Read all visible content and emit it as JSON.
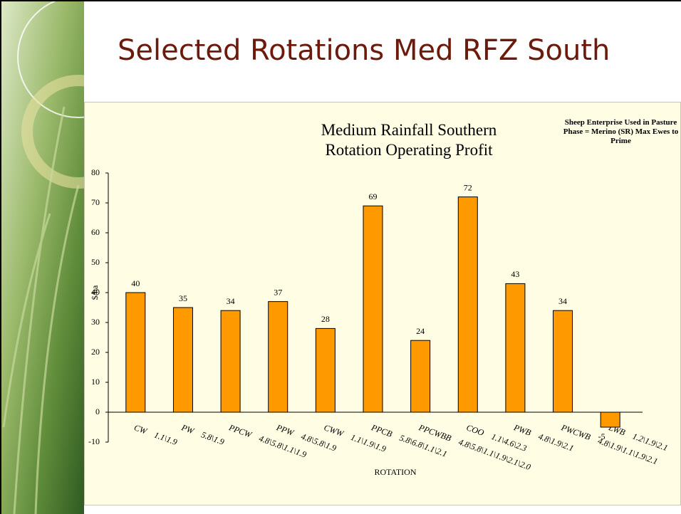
{
  "slide_title": "Selected Rotations Med RFZ South",
  "chart_data": {
    "type": "bar",
    "title": "Medium Rainfall Southern Rotation Operating Profit",
    "annotation": "Sheep Enterprise Used in Pasture Phase = Merino (SR) Max Ewes to Prime",
    "y_label": "$/ha",
    "x_label": "ROTATION",
    "categories": [
      "CW    1.1\\1.9",
      "PW    5.8\\1.9",
      "PPCW    4.8\\5.8\\1.1\\1.9",
      "PPW    4.8\\5.8\\1.9",
      "CWW    1.1\\1.9\\1.9",
      "PPCB    5.8\\6.8\\1.1\\2.1",
      "PPCWBB    4.8\\5.8\\1.1\\1.9\\2.1\\2.0",
      "COO    1.1\\4.6\\2.3",
      "PWB    4.8\\1.9\\2.1",
      "PWCWB    4.8\\1.9\\1.1\\1.9\\2.1",
      "LWB    1.2\\1.9\\2.1"
    ],
    "values": [
      40,
      35,
      34,
      37,
      28,
      69,
      24,
      72,
      43,
      34,
      -5
    ],
    "color": "#ff9900",
    "ylim": [
      -10,
      80
    ],
    "yticks": [
      -10,
      0,
      10,
      20,
      30,
      40,
      50,
      60,
      70,
      80
    ],
    "grid": false
  }
}
